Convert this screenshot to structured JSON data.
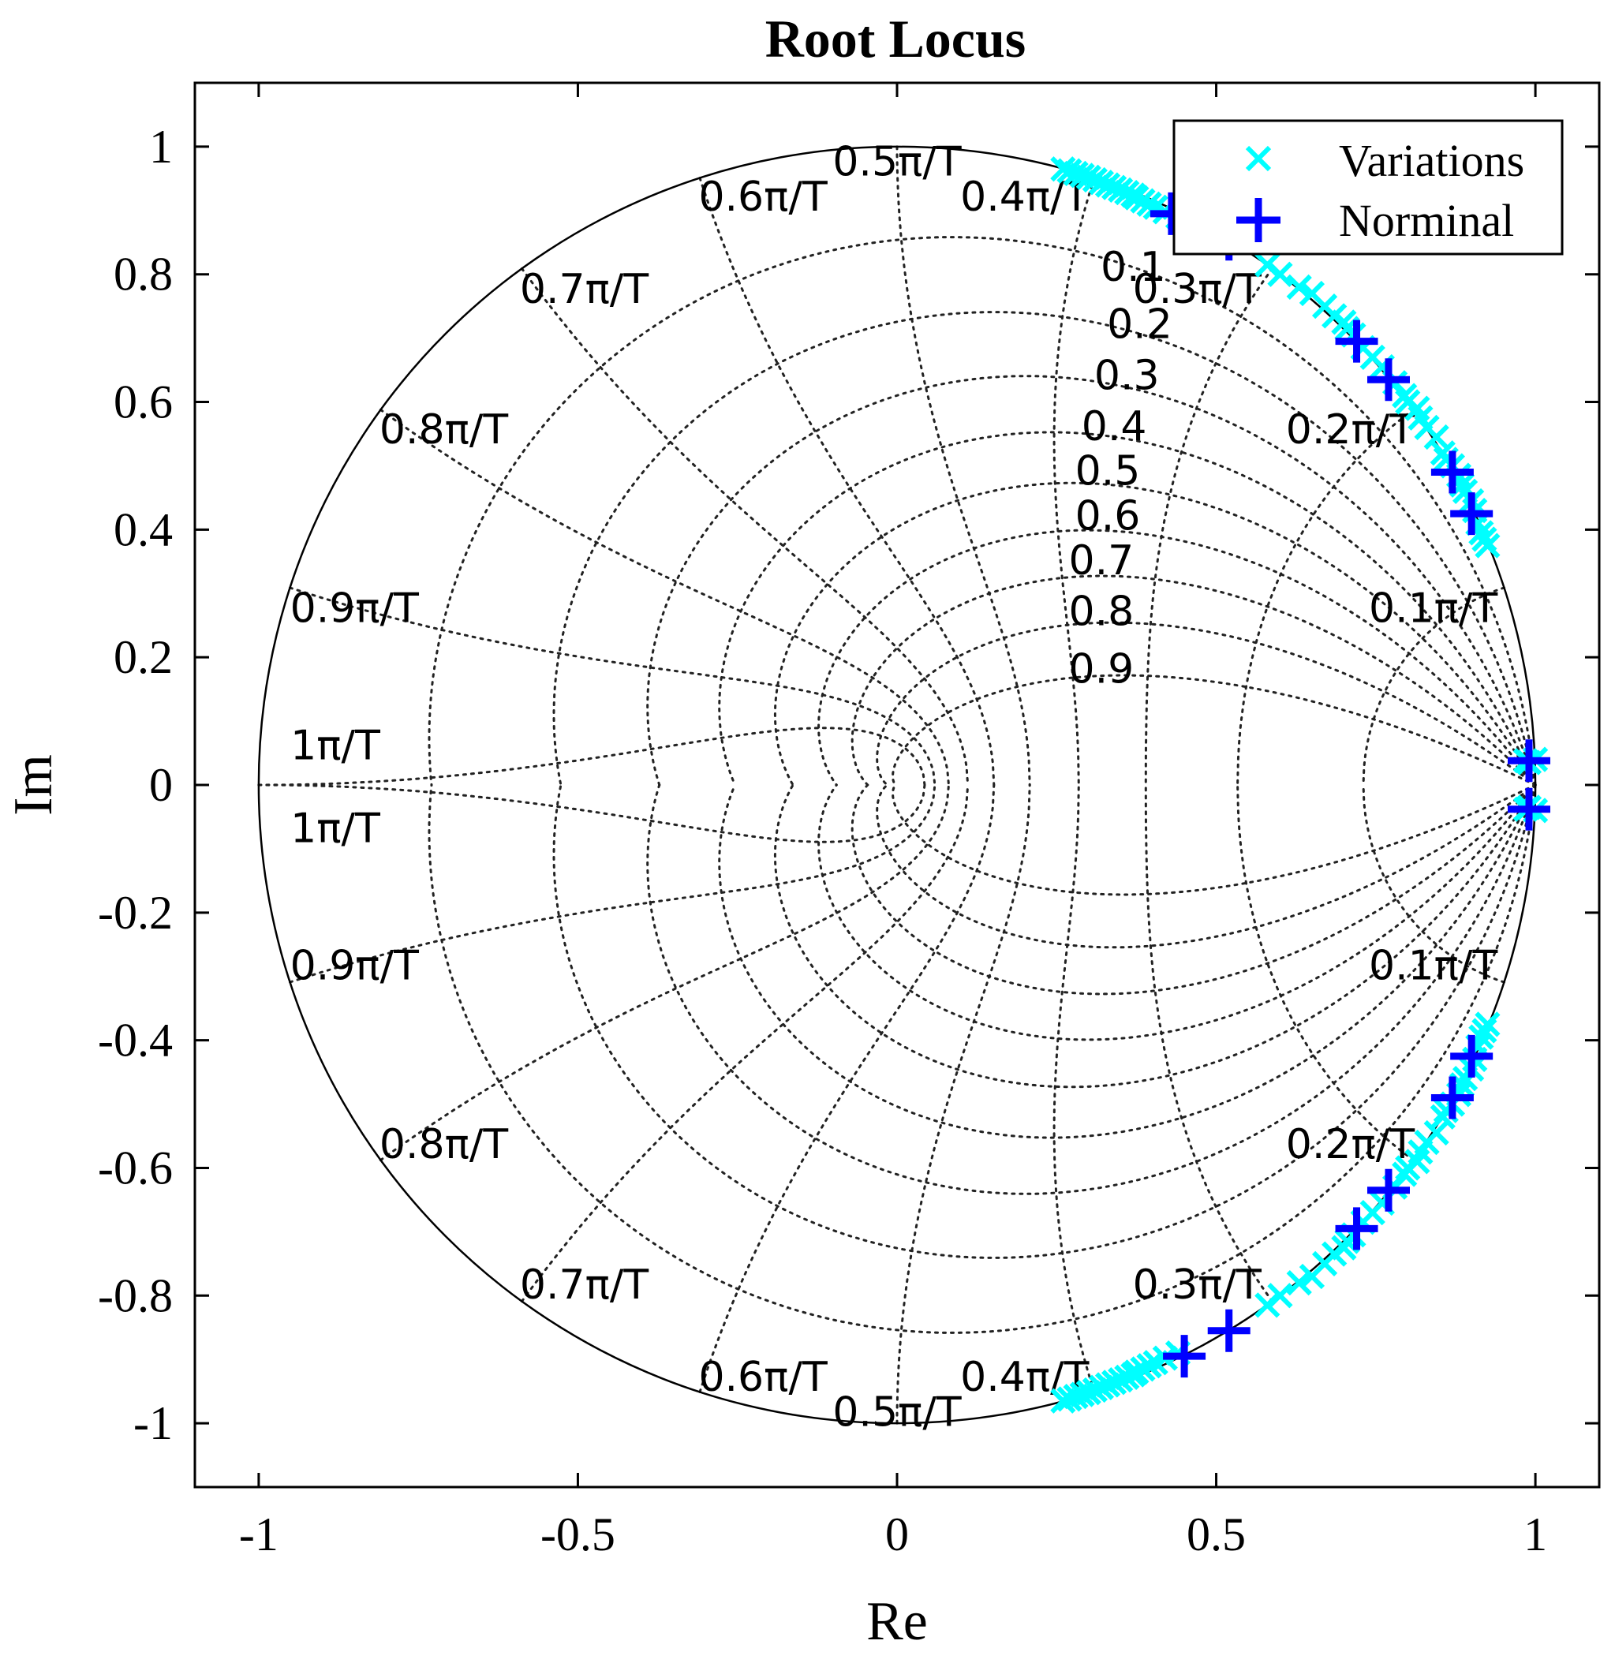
{
  "chart_data": {
    "type": "scatter",
    "title": "Root Locus",
    "xlabel": "Re",
    "ylabel": "Im",
    "xlim": [
      -1.1,
      1.1
    ],
    "ylim": [
      -1.1,
      1.1
    ],
    "xticks": [
      -1,
      -0.5,
      0,
      0.5,
      1
    ],
    "xtick_labels": [
      "-1",
      "-0.5",
      "0",
      "0.5",
      "1"
    ],
    "yticks": [
      -1,
      -0.8,
      -0.6,
      -0.4,
      -0.2,
      0,
      0.2,
      0.4,
      0.6,
      0.8,
      1
    ],
    "ytick_labels": [
      "-1",
      "-0.8",
      "-0.6",
      "-0.4",
      "-0.2",
      "0",
      "0.2",
      "0.4",
      "0.6",
      "0.8",
      "1"
    ],
    "legend_position": "top-right",
    "grid": {
      "type": "zgrid",
      "damping_values": [
        0.1,
        0.2,
        0.3,
        0.4,
        0.5,
        0.6,
        0.7,
        0.8,
        0.9
      ],
      "damping_labels": [
        "0.1",
        "0.2",
        "0.3",
        "0.4",
        "0.5",
        "0.6",
        "0.7",
        "0.8",
        "0.9"
      ],
      "damping_label_points": [
        [
          0.37,
          0.79
        ],
        [
          0.38,
          0.7
        ],
        [
          0.36,
          0.62
        ],
        [
          0.34,
          0.54
        ],
        [
          0.33,
          0.47
        ],
        [
          0.33,
          0.4
        ],
        [
          0.32,
          0.33
        ],
        [
          0.32,
          0.25
        ],
        [
          0.32,
          0.16
        ]
      ],
      "frequency_values": [
        0.1,
        0.2,
        0.3,
        0.4,
        0.5,
        0.6,
        0.7,
        0.8,
        0.9,
        1.0
      ],
      "frequency_labels": [
        "0.1π/T",
        "0.2π/T",
        "0.3π/T",
        "0.4π/T",
        "0.5π/T",
        "0.6π/T",
        "0.7π/T",
        "0.8π/T",
        "0.9π/T",
        "1π/T"
      ],
      "frequency_label_points": [
        [
          0.84,
          0.255
        ],
        [
          0.71,
          0.535
        ],
        [
          0.47,
          0.755
        ],
        [
          0.2,
          0.9
        ],
        [
          0.0,
          0.955
        ],
        [
          -0.21,
          0.9
        ],
        [
          -0.49,
          0.755
        ],
        [
          -0.71,
          0.535
        ],
        [
          -0.85,
          0.255
        ],
        [
          -0.88,
          0.04
        ]
      ]
    },
    "series": [
      {
        "name": "Variations",
        "marker": "x",
        "color": "#00ffff",
        "points": [
          [
            0.26,
            0.965
          ],
          [
            0.27,
            0.962
          ],
          [
            0.28,
            0.958
          ],
          [
            0.29,
            0.955
          ],
          [
            0.3,
            0.952
          ],
          [
            0.31,
            0.948
          ],
          [
            0.32,
            0.944
          ],
          [
            0.33,
            0.94
          ],
          [
            0.34,
            0.936
          ],
          [
            0.35,
            0.932
          ],
          [
            0.36,
            0.928
          ],
          [
            0.37,
            0.924
          ],
          [
            0.375,
            0.92
          ],
          [
            0.385,
            0.915
          ],
          [
            0.395,
            0.91
          ],
          [
            0.405,
            0.905
          ],
          [
            0.42,
            0.898
          ],
          [
            0.44,
            0.89
          ],
          [
            0.58,
            0.815
          ],
          [
            0.6,
            0.8
          ],
          [
            0.63,
            0.78
          ],
          [
            0.65,
            0.77
          ],
          [
            0.67,
            0.75
          ],
          [
            0.685,
            0.735
          ],
          [
            0.7,
            0.725
          ],
          [
            0.705,
            0.715
          ],
          [
            0.715,
            0.705
          ],
          [
            0.73,
            0.685
          ],
          [
            0.745,
            0.67
          ],
          [
            0.76,
            0.655
          ],
          [
            0.78,
            0.63
          ],
          [
            0.795,
            0.61
          ],
          [
            0.8,
            0.6
          ],
          [
            0.815,
            0.59
          ],
          [
            0.82,
            0.575
          ],
          [
            0.83,
            0.56
          ],
          [
            0.845,
            0.545
          ],
          [
            0.855,
            0.52
          ],
          [
            0.86,
            0.51
          ],
          [
            0.87,
            0.5
          ],
          [
            0.88,
            0.485
          ],
          [
            0.885,
            0.47
          ],
          [
            0.89,
            0.46
          ],
          [
            0.9,
            0.445
          ],
          [
            0.905,
            0.43
          ],
          [
            0.91,
            0.41
          ],
          [
            0.915,
            0.395
          ],
          [
            0.92,
            0.385
          ],
          [
            0.925,
            0.375
          ],
          [
            0.985,
            0.038
          ],
          [
            0.99,
            0.035
          ],
          [
            1.0,
            0.04
          ],
          [
            0.985,
            -0.038
          ],
          [
            0.99,
            -0.035
          ],
          [
            1.0,
            -0.04
          ],
          [
            0.26,
            -0.965
          ],
          [
            0.27,
            -0.962
          ],
          [
            0.28,
            -0.958
          ],
          [
            0.29,
            -0.955
          ],
          [
            0.3,
            -0.952
          ],
          [
            0.31,
            -0.948
          ],
          [
            0.32,
            -0.944
          ],
          [
            0.33,
            -0.94
          ],
          [
            0.34,
            -0.936
          ],
          [
            0.35,
            -0.932
          ],
          [
            0.36,
            -0.928
          ],
          [
            0.37,
            -0.924
          ],
          [
            0.375,
            -0.92
          ],
          [
            0.385,
            -0.915
          ],
          [
            0.395,
            -0.91
          ],
          [
            0.405,
            -0.905
          ],
          [
            0.42,
            -0.898
          ],
          [
            0.44,
            -0.89
          ],
          [
            0.58,
            -0.815
          ],
          [
            0.6,
            -0.8
          ],
          [
            0.63,
            -0.78
          ],
          [
            0.65,
            -0.77
          ],
          [
            0.67,
            -0.75
          ],
          [
            0.685,
            -0.735
          ],
          [
            0.7,
            -0.725
          ],
          [
            0.705,
            -0.715
          ],
          [
            0.715,
            -0.705
          ],
          [
            0.73,
            -0.685
          ],
          [
            0.745,
            -0.67
          ],
          [
            0.76,
            -0.655
          ],
          [
            0.78,
            -0.63
          ],
          [
            0.795,
            -0.61
          ],
          [
            0.8,
            -0.6
          ],
          [
            0.815,
            -0.59
          ],
          [
            0.82,
            -0.575
          ],
          [
            0.83,
            -0.56
          ],
          [
            0.845,
            -0.545
          ],
          [
            0.855,
            -0.52
          ],
          [
            0.86,
            -0.51
          ],
          [
            0.87,
            -0.5
          ],
          [
            0.88,
            -0.485
          ],
          [
            0.885,
            -0.47
          ],
          [
            0.89,
            -0.46
          ],
          [
            0.9,
            -0.445
          ],
          [
            0.905,
            -0.43
          ],
          [
            0.91,
            -0.41
          ],
          [
            0.915,
            -0.395
          ],
          [
            0.92,
            -0.385
          ],
          [
            0.925,
            -0.375
          ]
        ]
      },
      {
        "name": "Norminal",
        "marker": "+",
        "color": "#0000ff",
        "points": [
          [
            0.43,
            0.895
          ],
          [
            0.52,
            0.855
          ],
          [
            0.72,
            0.695
          ],
          [
            0.77,
            0.635
          ],
          [
            0.87,
            0.49
          ],
          [
            0.9,
            0.425
          ],
          [
            0.99,
            0.038
          ],
          [
            0.99,
            -0.038
          ],
          [
            0.45,
            -0.895
          ],
          [
            0.52,
            -0.855
          ],
          [
            0.72,
            -0.695
          ],
          [
            0.77,
            -0.635
          ],
          [
            0.87,
            -0.49
          ],
          [
            0.9,
            -0.425
          ]
        ]
      }
    ]
  }
}
